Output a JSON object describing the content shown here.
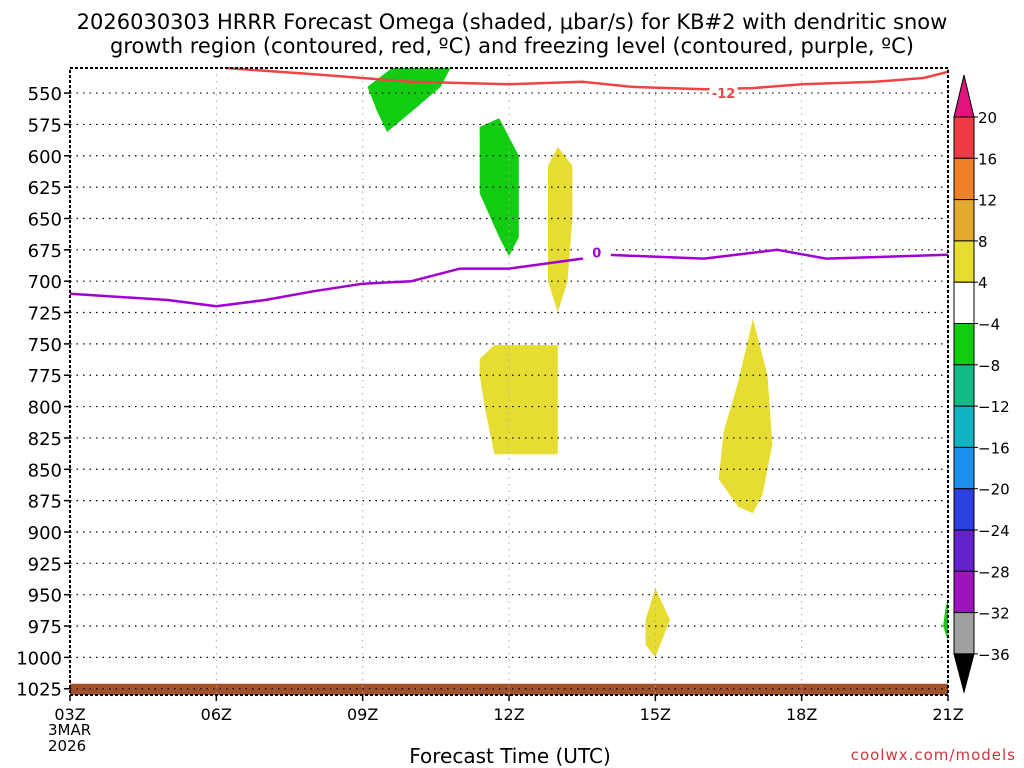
{
  "title_line1": "2026030303 HRRR Forecast Omega (shaded, μbar/s) for KB#2 with dendritic snow",
  "title_line2": "growth region (contoured, red, ºC) and freezing level (contoured, purple, ºC)",
  "footer": {
    "credit": "coolwx.com/models",
    "first_date_line1": "3MAR",
    "first_date_line2": "2026"
  },
  "chart_data": {
    "type": "time-pressure cross section",
    "xlabel": "Forecast Time (UTC)",
    "x_ticks": [
      {
        "h": 0,
        "label": "03Z"
      },
      {
        "h": 3,
        "label": "06Z"
      },
      {
        "h": 6,
        "label": "09Z"
      },
      {
        "h": 9,
        "label": "12Z"
      },
      {
        "h": 12,
        "label": "15Z"
      },
      {
        "h": 15,
        "label": "18Z"
      },
      {
        "h": 18,
        "label": "21Z"
      }
    ],
    "xlim": [
      0,
      18
    ],
    "y_ticks": [
      550,
      575,
      600,
      625,
      650,
      675,
      700,
      725,
      750,
      775,
      800,
      825,
      850,
      875,
      900,
      925,
      950,
      975,
      1000,
      1025
    ],
    "ylim": [
      530,
      1030
    ],
    "colorbar": {
      "labels": [
        "20",
        "16",
        "12",
        "8",
        "4",
        "−4",
        "−8",
        "−12",
        "−16",
        "−20",
        "−24",
        "−28",
        "−32",
        "−36"
      ],
      "colors": [
        "#ee3a44",
        "#ee8028",
        "#e4aa30",
        "#e6dc32",
        "#ffffff",
        "#12cc12",
        "#12bb88",
        "#12b4c4",
        "#1a90ee",
        "#2a40e0",
        "#6422cc",
        "#9c14bc",
        "#a0a0a0"
      ],
      "top_arrow_color": "#e0147a",
      "bottom_arrow_color": "#000000"
    },
    "contours": [
      {
        "label": "-12",
        "color": "#ee4444",
        "label_at": [
          13.4,
          550
        ],
        "points": [
          [
            3.2,
            530
          ],
          [
            5,
            535
          ],
          [
            7,
            541
          ],
          [
            9,
            543
          ],
          [
            10.5,
            541
          ],
          [
            11.5,
            545
          ],
          [
            13,
            547
          ],
          [
            14,
            546
          ],
          [
            15,
            543
          ],
          [
            16.5,
            541
          ],
          [
            17.5,
            538
          ],
          [
            18,
            533
          ]
        ]
      },
      {
        "label": "0",
        "color": "#a000d0",
        "label_at": [
          10.8,
          677
        ],
        "points": [
          [
            0,
            710
          ],
          [
            2,
            715
          ],
          [
            3,
            720
          ],
          [
            4,
            715
          ],
          [
            5,
            708
          ],
          [
            6,
            702
          ],
          [
            7,
            700
          ],
          [
            8,
            690
          ],
          [
            9,
            690
          ],
          [
            10.5,
            682
          ],
          [
            11,
            679
          ],
          [
            13,
            682
          ],
          [
            14.5,
            675
          ],
          [
            15.5,
            682
          ],
          [
            18,
            679
          ]
        ]
      }
    ],
    "shaded": [
      {
        "color": "#12cc12",
        "points": [
          [
            6.6,
            530
          ],
          [
            7.8,
            530
          ],
          [
            7.6,
            545
          ],
          [
            7,
            565
          ],
          [
            6.5,
            581
          ],
          [
            6.3,
            565
          ],
          [
            6.1,
            545
          ]
        ]
      },
      {
        "color": "#12cc12",
        "points": [
          [
            8.4,
            577
          ],
          [
            8.8,
            570
          ],
          [
            9.2,
            600
          ],
          [
            9.2,
            665
          ],
          [
            9,
            680
          ],
          [
            8.8,
            665
          ],
          [
            8.4,
            630
          ]
        ]
      },
      {
        "color": "#e6dc32",
        "points": [
          [
            10,
            593
          ],
          [
            10.3,
            608
          ],
          [
            10.3,
            650
          ],
          [
            10.2,
            700
          ],
          [
            10,
            725
          ],
          [
            9.8,
            700
          ],
          [
            9.8,
            650
          ],
          [
            9.8,
            608
          ]
        ]
      },
      {
        "color": "#e6dc32",
        "points": [
          [
            8.4,
            762
          ],
          [
            8.7,
            751
          ],
          [
            10,
            751
          ],
          [
            10,
            838
          ],
          [
            8.7,
            838
          ],
          [
            8.5,
            800
          ],
          [
            8.4,
            775
          ]
        ]
      },
      {
        "color": "#e6dc32",
        "points": [
          [
            14,
            730
          ],
          [
            14.3,
            775
          ],
          [
            14.4,
            830
          ],
          [
            14.2,
            870
          ],
          [
            14,
            885
          ],
          [
            13.7,
            880
          ],
          [
            13.3,
            858
          ],
          [
            13.4,
            820
          ],
          [
            13.7,
            780
          ]
        ]
      },
      {
        "color": "#e6dc32",
        "points": [
          [
            12,
            945
          ],
          [
            12.3,
            970
          ],
          [
            12,
            1000
          ],
          [
            11.8,
            990
          ],
          [
            11.8,
            970
          ]
        ]
      },
      {
        "color": "#12cc12",
        "points": [
          [
            18,
            953
          ],
          [
            18,
            987
          ],
          [
            17.9,
            975
          ],
          [
            17.95,
            960
          ]
        ]
      }
    ],
    "ground": {
      "color": "#a0522d",
      "top": 1021,
      "bottom": 1030
    }
  }
}
